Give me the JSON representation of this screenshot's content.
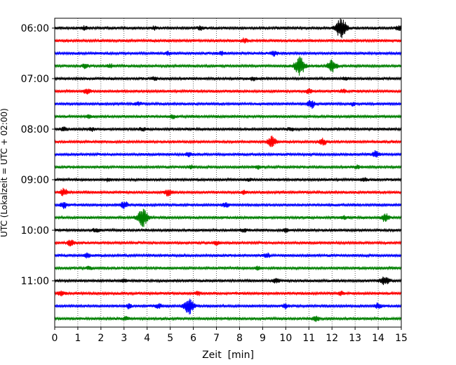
{
  "chart_data": {
    "type": "line",
    "title": "",
    "xlabel": "Zeit  [min]",
    "ylabel": "UTC (Lokalzeit = UTC + 02:00)",
    "xlim": [
      0,
      15
    ],
    "x_ticks": [
      0,
      1,
      2,
      3,
      4,
      5,
      6,
      7,
      8,
      9,
      10,
      11,
      12,
      13,
      14,
      15
    ],
    "x_tick_labels": [
      "0",
      "1",
      "2",
      "3",
      "4",
      "5",
      "6",
      "7",
      "8",
      "9",
      "10",
      "11",
      "12",
      "13",
      "14",
      "15"
    ],
    "y_tick_labels": [
      "06:00",
      "07:00",
      "08:00",
      "09:00",
      "10:00",
      "11:00"
    ],
    "y_tick_rows": [
      0,
      4,
      8,
      12,
      16,
      20
    ],
    "grid": "vertical dotted",
    "row_interval_minutes": 15,
    "row_colors": [
      "#000000",
      "#ff0000",
      "#0000ff",
      "#008000"
    ],
    "rows": [
      {
        "start": "06:00",
        "events": [
          {
            "t": 1.3,
            "a": 0.15
          },
          {
            "t": 4.3,
            "a": 0.15
          },
          {
            "t": 6.3,
            "a": 0.15
          },
          {
            "t": 12.4,
            "a": 1.0
          },
          {
            "t": 14.9,
            "a": 0.2
          }
        ]
      },
      {
        "start": "06:15",
        "events": [
          {
            "t": 8.2,
            "a": 0.2
          }
        ]
      },
      {
        "start": "06:30",
        "events": [
          {
            "t": 4.9,
            "a": 0.15
          },
          {
            "t": 7.2,
            "a": 0.15
          },
          {
            "t": 9.5,
            "a": 0.25
          }
        ]
      },
      {
        "start": "06:45",
        "events": [
          {
            "t": 1.3,
            "a": 0.2
          },
          {
            "t": 2.4,
            "a": 0.15
          },
          {
            "t": 10.6,
            "a": 0.9
          },
          {
            "t": 12.0,
            "a": 0.6
          }
        ]
      },
      {
        "start": "07:00",
        "events": [
          {
            "t": 4.3,
            "a": 0.15
          },
          {
            "t": 8.6,
            "a": 0.15
          },
          {
            "t": 12.6,
            "a": 0.15
          }
        ]
      },
      {
        "start": "07:15",
        "events": [
          {
            "t": 1.4,
            "a": 0.3
          },
          {
            "t": 11.0,
            "a": 0.2
          },
          {
            "t": 12.5,
            "a": 0.15
          }
        ]
      },
      {
        "start": "07:30",
        "events": [
          {
            "t": 3.6,
            "a": 0.15
          },
          {
            "t": 11.1,
            "a": 0.4
          },
          {
            "t": 12.9,
            "a": 0.15
          }
        ]
      },
      {
        "start": "07:45",
        "events": [
          {
            "t": 1.5,
            "a": 0.15
          },
          {
            "t": 5.1,
            "a": 0.15
          }
        ]
      },
      {
        "start": "08:00",
        "events": [
          {
            "t": 0.4,
            "a": 0.15
          },
          {
            "t": 1.6,
            "a": 0.15
          },
          {
            "t": 3.8,
            "a": 0.15
          },
          {
            "t": 10.2,
            "a": 0.15
          }
        ]
      },
      {
        "start": "08:15",
        "events": [
          {
            "t": 9.4,
            "a": 0.5
          },
          {
            "t": 11.6,
            "a": 0.3
          }
        ]
      },
      {
        "start": "08:30",
        "events": [
          {
            "t": 5.8,
            "a": 0.2
          },
          {
            "t": 13.9,
            "a": 0.3
          }
        ]
      },
      {
        "start": "08:45",
        "events": [
          {
            "t": 5.9,
            "a": 0.15
          },
          {
            "t": 8.8,
            "a": 0.15
          },
          {
            "t": 13.1,
            "a": 0.15
          }
        ]
      },
      {
        "start": "09:00",
        "events": [
          {
            "t": 2.3,
            "a": 0.15
          },
          {
            "t": 8.4,
            "a": 0.15
          },
          {
            "t": 13.4,
            "a": 0.15
          }
        ]
      },
      {
        "start": "09:15",
        "events": [
          {
            "t": 0.4,
            "a": 0.35
          },
          {
            "t": 4.9,
            "a": 0.3
          },
          {
            "t": 8.2,
            "a": 0.15
          }
        ]
      },
      {
        "start": "09:30",
        "events": [
          {
            "t": 0.4,
            "a": 0.3
          },
          {
            "t": 3.0,
            "a": 0.35
          },
          {
            "t": 7.4,
            "a": 0.2
          }
        ]
      },
      {
        "start": "09:45",
        "events": [
          {
            "t": 3.8,
            "a": 0.9
          },
          {
            "t": 12.5,
            "a": 0.15
          },
          {
            "t": 14.3,
            "a": 0.4
          }
        ]
      },
      {
        "start": "10:00",
        "events": [
          {
            "t": 1.8,
            "a": 0.2
          },
          {
            "t": 8.2,
            "a": 0.15
          },
          {
            "t": 10.0,
            "a": 0.15
          }
        ]
      },
      {
        "start": "10:15",
        "events": [
          {
            "t": 0.7,
            "a": 0.3
          },
          {
            "t": 7.0,
            "a": 0.15
          }
        ]
      },
      {
        "start": "10:30",
        "events": [
          {
            "t": 1.4,
            "a": 0.2
          },
          {
            "t": 9.2,
            "a": 0.2
          }
        ]
      },
      {
        "start": "10:45",
        "events": [
          {
            "t": 1.5,
            "a": 0.15
          },
          {
            "t": 8.8,
            "a": 0.15
          }
        ]
      },
      {
        "start": "11:00",
        "events": [
          {
            "t": 3.0,
            "a": 0.15
          },
          {
            "t": 9.6,
            "a": 0.2
          },
          {
            "t": 14.2,
            "a": 0.3
          },
          {
            "t": 14.4,
            "a": 0.2
          }
        ]
      },
      {
        "start": "11:15",
        "events": [
          {
            "t": 0.3,
            "a": 0.25
          },
          {
            "t": 6.2,
            "a": 0.15
          },
          {
            "t": 12.4,
            "a": 0.15
          }
        ]
      },
      {
        "start": "11:30",
        "events": [
          {
            "t": 3.2,
            "a": 0.2
          },
          {
            "t": 4.5,
            "a": 0.2
          },
          {
            "t": 5.8,
            "a": 0.8
          },
          {
            "t": 10.0,
            "a": 0.2
          },
          {
            "t": 14.0,
            "a": 0.25
          }
        ]
      },
      {
        "start": "11:45",
        "events": [
          {
            "t": 3.1,
            "a": 0.15
          },
          {
            "t": 11.3,
            "a": 0.25
          }
        ]
      }
    ]
  }
}
